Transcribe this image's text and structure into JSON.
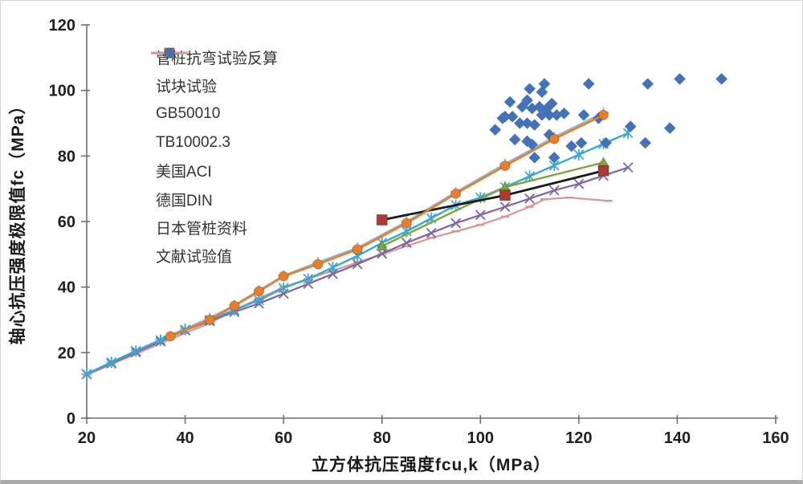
{
  "figure": {
    "background": "#FFFFFF",
    "border_color": "#D6D6D6",
    "bottom_edge_color": "#ABABAB",
    "axis_color": "#6E6E6E",
    "tick_text_color": "#1F1F1F"
  },
  "chart_data": {
    "type": "line-scatter",
    "title": "",
    "xlabel": "立方体抗压强度fcu,k（MPa）",
    "ylabel": "轴心抗压强度极限值fc（MPa）",
    "xlim": [
      20,
      160
    ],
    "ylim": [
      0,
      120
    ],
    "xticks": [
      20,
      40,
      60,
      80,
      100,
      120,
      140,
      160
    ],
    "yticks": [
      0,
      20,
      40,
      60,
      80,
      100,
      120
    ],
    "grid": false,
    "legend_position": "upper-left-inside",
    "series": [
      {
        "id": "pile",
        "name": "管桩抗弯试验反算",
        "marker": "square",
        "marker_color": "#A93B32",
        "line_color": "#1A1A1A",
        "line_width": 2.8,
        "line": true,
        "z": 6,
        "points": [
          [
            80,
            60.5
          ],
          [
            105,
            68
          ],
          [
            125,
            75.5
          ]
        ]
      },
      {
        "id": "cube",
        "name": "试块试验",
        "marker": "triangle",
        "marker_color": "#7FA33D",
        "line_color": "#7FA33D",
        "line_width": 2.4,
        "line": true,
        "z": 5,
        "points": [
          [
            80,
            52.5
          ],
          [
            105,
            70.5
          ],
          [
            125,
            78
          ]
        ]
      },
      {
        "id": "gb",
        "name": "GB50010",
        "marker": "x",
        "marker_color": "#8064A2",
        "line_color": "#8064A2",
        "line_width": 2.2,
        "line": true,
        "z": 3,
        "points": [
          [
            20,
            13.4
          ],
          [
            25,
            16.7
          ],
          [
            30,
            20.1
          ],
          [
            35,
            23.4
          ],
          [
            40,
            26.8
          ],
          [
            45,
            29.6
          ],
          [
            50,
            32.4
          ],
          [
            55,
            35
          ],
          [
            60,
            38
          ],
          [
            65,
            41
          ],
          [
            70,
            44
          ],
          [
            75,
            47
          ],
          [
            80,
            50.2
          ],
          [
            85,
            53.5
          ],
          [
            90,
            56.5
          ],
          [
            95,
            59.5
          ],
          [
            100,
            62
          ],
          [
            105,
            64.5
          ],
          [
            110,
            67
          ],
          [
            115,
            69.5
          ],
          [
            120,
            71.5
          ],
          [
            125,
            74
          ],
          [
            130,
            76.5
          ]
        ]
      },
      {
        "id": "tb",
        "name": "TB10002.3",
        "marker": "asterisk",
        "marker_color": "#39A8CC",
        "line_color": "#39A8CC",
        "line_width": 2.4,
        "line": true,
        "z": 4,
        "points": [
          [
            20,
            13.5
          ],
          [
            25,
            17
          ],
          [
            30,
            20.5
          ],
          [
            35,
            23.8
          ],
          [
            40,
            27
          ],
          [
            45,
            30
          ],
          [
            50,
            33
          ],
          [
            55,
            36
          ],
          [
            60,
            39.7
          ],
          [
            65,
            42.5
          ],
          [
            70,
            46
          ],
          [
            75,
            49.5
          ],
          [
            80,
            53.5
          ],
          [
            85,
            57
          ],
          [
            90,
            61
          ],
          [
            95,
            65
          ],
          [
            100,
            67.3
          ],
          [
            105,
            70.5
          ],
          [
            110,
            73.8
          ],
          [
            115,
            77.1
          ],
          [
            120,
            80.4
          ],
          [
            125,
            83.7
          ],
          [
            130,
            87
          ]
        ]
      },
      {
        "id": "aci",
        "name": "美国ACI",
        "marker": "circle",
        "marker_color": "#E87E27",
        "line_color": "#E87E27",
        "line_width": 2.6,
        "line": true,
        "z": 8,
        "points": [
          [
            37,
            25
          ],
          [
            45,
            30
          ],
          [
            50,
            34.3
          ],
          [
            55,
            38.7
          ],
          [
            60,
            43.3
          ],
          [
            67,
            47
          ],
          [
            75,
            51.5
          ],
          [
            85,
            59.5
          ],
          [
            95,
            68.5
          ],
          [
            105,
            77
          ],
          [
            115,
            85.2
          ],
          [
            125,
            92.5
          ]
        ]
      },
      {
        "id": "din",
        "name": "德国DIN",
        "marker": "plus",
        "marker_color": "#95B3D7",
        "line_color": "#95B3D7",
        "line_width": 2.2,
        "line": true,
        "z": 2,
        "points": [
          [
            20,
            13.5
          ],
          [
            25,
            17.1
          ],
          [
            30,
            20.6
          ],
          [
            35,
            24
          ],
          [
            40,
            27.3
          ],
          [
            45,
            30.6
          ],
          [
            50,
            34.5
          ],
          [
            55,
            39
          ],
          [
            60,
            43.5
          ],
          [
            67,
            47.6
          ],
          [
            75,
            52
          ],
          [
            85,
            60
          ],
          [
            95,
            69
          ],
          [
            105,
            77.6
          ],
          [
            115,
            85.8
          ],
          [
            125,
            93.2
          ]
        ]
      },
      {
        "id": "japan",
        "name": "日本管桩资料",
        "marker": "dash",
        "marker_color": "#D99694",
        "line_color": "#D99694",
        "line_width": 2.2,
        "line": true,
        "z": 1,
        "points": [
          [
            20,
            13.2
          ],
          [
            25,
            16.4
          ],
          [
            30,
            19.6
          ],
          [
            35,
            22.8
          ],
          [
            40,
            26
          ],
          [
            45,
            29
          ],
          [
            50,
            33
          ],
          [
            55,
            36.5
          ],
          [
            60,
            40
          ],
          [
            65,
            42.5
          ],
          [
            70,
            45
          ],
          [
            75,
            47.5
          ],
          [
            80,
            50
          ],
          [
            85,
            52.5
          ],
          [
            90,
            55
          ],
          [
            95,
            57
          ],
          [
            100,
            59
          ],
          [
            105,
            61.5
          ],
          [
            110,
            64.5
          ],
          [
            113,
            66.8
          ],
          [
            118,
            67.3
          ],
          [
            126,
            66.3
          ]
        ]
      },
      {
        "id": "literature",
        "name": "文献试验值",
        "marker": "diamond",
        "marker_color": "#4472B8",
        "line_color": "#4472B8",
        "line_width": 0,
        "line": false,
        "z": 7,
        "points": [
          [
            103,
            88
          ],
          [
            104.5,
            91.5
          ],
          [
            105,
            92
          ],
          [
            106,
            96.5
          ],
          [
            106.5,
            92
          ],
          [
            107,
            85
          ],
          [
            108,
            90
          ],
          [
            108.5,
            95
          ],
          [
            109.5,
            97
          ],
          [
            109.5,
            90
          ],
          [
            109.5,
            84.5
          ],
          [
            110,
            100.5
          ],
          [
            110.5,
            94.5
          ],
          [
            110.5,
            83.5
          ],
          [
            111,
            89.5
          ],
          [
            111,
            79.5
          ],
          [
            112,
            95
          ],
          [
            112.5,
            99.5
          ],
          [
            112.5,
            92.5
          ],
          [
            113,
            102
          ],
          [
            113.5,
            94.5
          ],
          [
            114,
            92.5
          ],
          [
            114,
            86.5
          ],
          [
            114.5,
            96
          ],
          [
            115,
            79.5
          ],
          [
            115.5,
            92.5
          ],
          [
            117,
            93
          ],
          [
            118.5,
            83
          ],
          [
            120.5,
            84
          ],
          [
            121,
            92.5
          ],
          [
            122,
            102
          ],
          [
            124,
            91.5
          ],
          [
            125.5,
            84
          ],
          [
            130.5,
            89
          ],
          [
            133.5,
            84
          ],
          [
            134,
            102
          ],
          [
            138.5,
            88.5
          ],
          [
            140.5,
            103.5
          ],
          [
            149,
            103.5
          ]
        ]
      }
    ]
  }
}
